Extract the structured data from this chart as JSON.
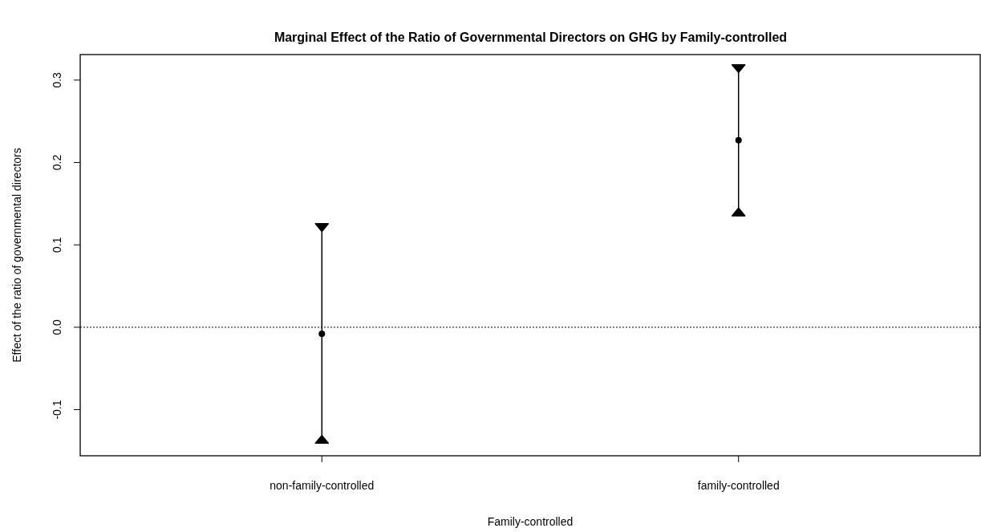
{
  "chart_data": {
    "type": "scatter",
    "title": "Marginal Effect of the Ratio of Governmental Directors on GHG by Family-controlled",
    "xlabel": "Family-controlled",
    "ylabel": "Effect of the ratio of governmental directors",
    "categories": [
      "non-family-controlled",
      "family-controlled"
    ],
    "series": [
      {
        "color": "#000000",
        "values": [
          -0.008,
          0.227
        ],
        "errors": [
          [
            -0.136,
            0.121
          ],
          [
            0.14,
            0.314
          ]
        ]
      }
    ],
    "ylim": [
      -0.156,
      0.331
    ],
    "yticks": [
      -0.1,
      {
        "value": 0,
        "label": "0.0"
      },
      0.1,
      0.2,
      0.3
    ],
    "ref_lines": [
      {
        "axis": "y",
        "value": 0,
        "line_style": "dotted",
        "color": "#000000"
      }
    ],
    "marker": "circle",
    "grid": false
  }
}
